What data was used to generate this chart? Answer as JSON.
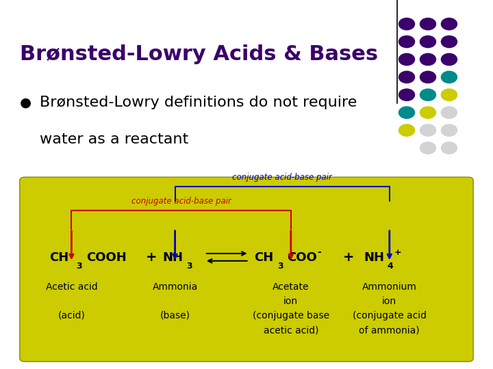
{
  "title": "Brønsted-Lowry Acids & Bases",
  "title_color": "#3b006b",
  "bullet_text_line1": "Brønsted-Lowry definitions do not require",
  "bullet_text_line2": "water as a reactant",
  "box_bg_color": "#cccc00",
  "arrow_red": "#cc0000",
  "arrow_blue": "#0000cc",
  "bracket_red": "#cc0000",
  "bracket_blue": "#0000cc",
  "dot_grid": [
    [
      0,
      0,
      "#3b006b"
    ],
    [
      1,
      0,
      "#3b006b"
    ],
    [
      2,
      0,
      "#3b006b"
    ],
    [
      0,
      1,
      "#3b006b"
    ],
    [
      1,
      1,
      "#3b006b"
    ],
    [
      2,
      1,
      "#3b006b"
    ],
    [
      0,
      2,
      "#3b006b"
    ],
    [
      1,
      2,
      "#3b006b"
    ],
    [
      2,
      2,
      "#3b006b"
    ],
    [
      0,
      3,
      "#3b006b"
    ],
    [
      1,
      3,
      "#3b006b"
    ],
    [
      2,
      3,
      "#008b8b"
    ],
    [
      0,
      4,
      "#3b006b"
    ],
    [
      1,
      4,
      "#008b8b"
    ],
    [
      2,
      4,
      "#cccc00"
    ],
    [
      0,
      5,
      "#008b8b"
    ],
    [
      1,
      5,
      "#cccc00"
    ],
    [
      2,
      5,
      "#d3d3d3"
    ],
    [
      0,
      6,
      "#cccc00"
    ],
    [
      1,
      6,
      "#d3d3d3"
    ],
    [
      2,
      6,
      "#d3d3d3"
    ],
    [
      1,
      7,
      "#d3d3d3"
    ],
    [
      2,
      7,
      "#d3d3d3"
    ]
  ]
}
